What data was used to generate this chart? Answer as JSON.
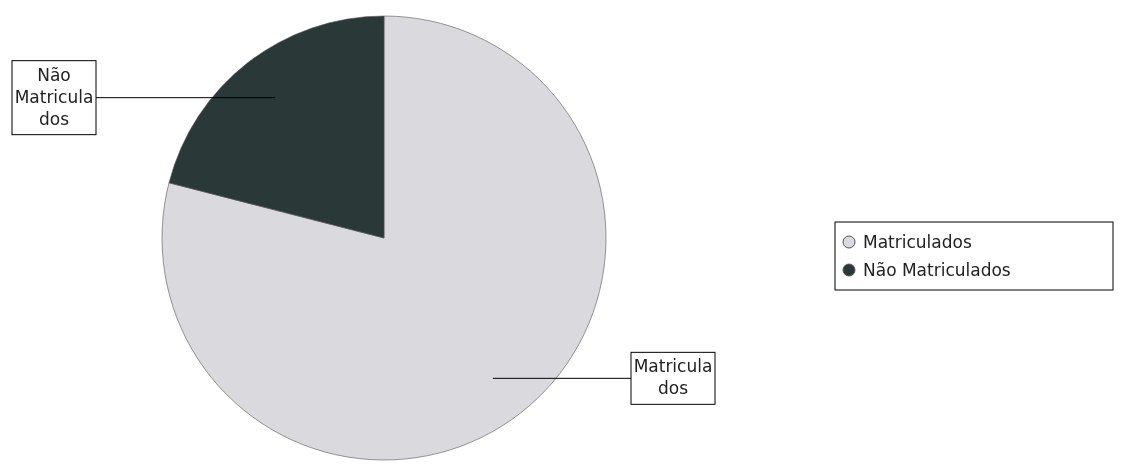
{
  "chart_data": {
    "type": "pie",
    "categories": [
      "Matriculados",
      "Não Matriculados"
    ],
    "values": [
      79,
      21
    ],
    "colors": [
      "#d9d9de",
      "#2b3838"
    ],
    "annotations": [
      "Matricula\ndos",
      "Não\nMatricula\ndos"
    ],
    "legend": "right"
  }
}
